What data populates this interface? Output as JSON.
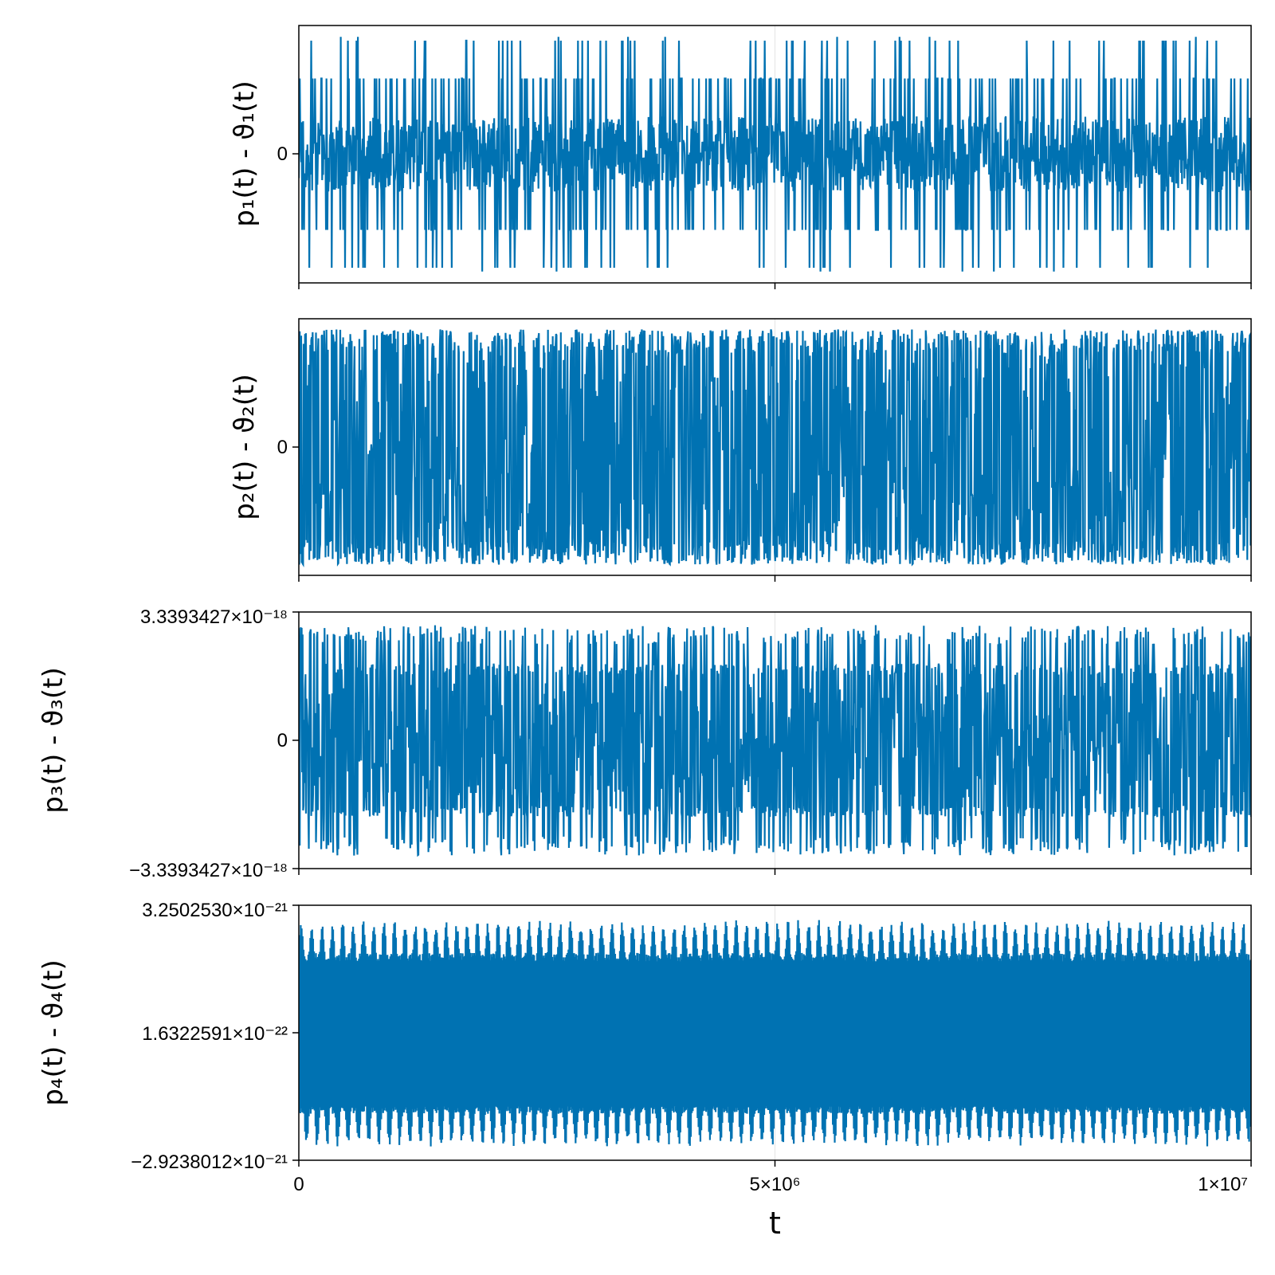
{
  "chart_data": [
    {
      "type": "line",
      "ylabel": "p₁(t) - ϑ₁(t)",
      "color": "#0072b2",
      "yticks": [
        {
          "value": 0,
          "label": "0"
        }
      ],
      "ylim": [
        -1.7,
        1.7
      ],
      "xlim": [
        0,
        10000000
      ],
      "xticks": [
        {
          "value": 0,
          "label": ""
        },
        {
          "value": 5000000,
          "label": ""
        },
        {
          "value": 10000000,
          "label": ""
        }
      ],
      "band": {
        "core": 0.5,
        "levels": [
          1.0,
          1.5
        ],
        "peak": 1.55,
        "dense": false
      },
      "series": [
        {
          "name": "",
          "x_start": 0,
          "x_end": 10000000,
          "samples": 2000
        }
      ]
    },
    {
      "type": "line",
      "ylabel": "p₂(t) - ϑ₂(t)",
      "color": "#0072b2",
      "yticks": [
        {
          "value": 0,
          "label": "0"
        }
      ],
      "ylim": [
        -1.45,
        1.45
      ],
      "xlim": [
        0,
        10000000
      ],
      "xticks": [
        {
          "value": 0,
          "label": ""
        },
        {
          "value": 5000000,
          "label": ""
        },
        {
          "value": 10000000,
          "label": ""
        }
      ],
      "band": {
        "core": 1.15,
        "levels": [
          1.25
        ],
        "peak": 1.33,
        "dense": true
      },
      "series": [
        {
          "name": "",
          "x_start": 0,
          "x_end": 10000000,
          "samples": 2000
        }
      ]
    },
    {
      "type": "line",
      "ylabel": "p₃(t) - ϑ₃(t)",
      "color": "#0072b2",
      "yticks": [
        {
          "value": 3.3393427e-18,
          "label": "3.3393427×10⁻¹⁸"
        },
        {
          "value": 0,
          "label": "0"
        },
        {
          "value": -3.3393427e-18,
          "label": "−3.3393427×10⁻¹⁸"
        }
      ],
      "ylim": [
        -3.3393427e-18,
        3.3393427e-18
      ],
      "xlim": [
        0,
        10000000
      ],
      "xticks": [
        {
          "value": 0,
          "label": ""
        },
        {
          "value": 5000000,
          "label": ""
        },
        {
          "value": 10000000,
          "label": ""
        }
      ],
      "band": {
        "core": 1.5e-18,
        "levels": [
          2e-18,
          2.5e-18
        ],
        "peak": 3e-18,
        "dense": true
      },
      "series": [
        {
          "name": "",
          "x_start": 0,
          "x_end": 10000000,
          "samples": 2000
        }
      ]
    },
    {
      "type": "line",
      "ylabel": "p₄(t) - ϑ₄(t)",
      "color": "#0072b2",
      "xlabel": "t",
      "yticks": [
        {
          "value": 3.250253e-21,
          "label": "3.2502530×10⁻²¹"
        },
        {
          "value": 1.6322591e-22,
          "label": "1.6322591×10⁻²²"
        },
        {
          "value": -2.9238012e-21,
          "label": "−2.9238012×10⁻²¹"
        }
      ],
      "ylim": [
        -2.9238012e-21,
        3.250253e-21
      ],
      "xlim": [
        0,
        10000000
      ],
      "xticks": [
        {
          "value": 0,
          "label": "0"
        },
        {
          "value": 5000000,
          "label": "5×10⁶"
        },
        {
          "value": 10000000,
          "label": "1×10⁷"
        }
      ],
      "oscillation": {
        "upper": 2.9e-21,
        "lower": -2.6e-21,
        "core_upper": 2.1e-21,
        "core_lower": -1.8e-21,
        "cycles": 92
      },
      "series": [
        {
          "name": "",
          "x_start": 0,
          "x_end": 10000000,
          "samples": 2000
        }
      ]
    }
  ]
}
